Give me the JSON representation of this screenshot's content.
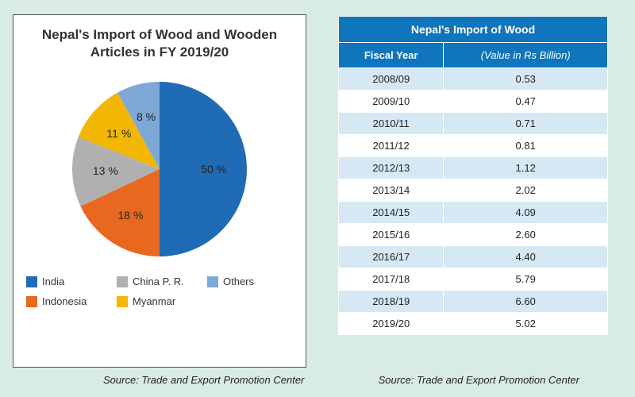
{
  "chart": {
    "type": "pie",
    "title": "Nepal's Import of Wood and Wooden Articles in FY 2019/20",
    "title_fontsize": 17,
    "background_color": "#ffffff",
    "border_color": "#555555",
    "radius": 110,
    "label_fontsize": 14,
    "slices": [
      {
        "label": "India",
        "value": 50,
        "color": "#1f6bb6"
      },
      {
        "label": "Indonesia",
        "value": 18,
        "color": "#e8681f"
      },
      {
        "label": "China P. R.",
        "value": 13,
        "color": "#b0b0b0"
      },
      {
        "label": "Myanmar",
        "value": 11,
        "color": "#f2b705"
      },
      {
        "label": "Others",
        "value": 8,
        "color": "#7ea8d6"
      }
    ],
    "legend_order": [
      "India",
      "China P. R.",
      "Others",
      "Indonesia",
      "Myanmar"
    ],
    "source": "Source: Trade and Export Promotion Center"
  },
  "table": {
    "title": "Nepal's Import of Wood",
    "header_bg": "#0f75bc",
    "header_fg": "#ffffff",
    "row_alt_bg": "#d6e8f4",
    "row_bg": "#ffffff",
    "columns": [
      {
        "label": "Fiscal Year",
        "italic": false
      },
      {
        "label": "(Value in Rs Billion)",
        "italic": true
      }
    ],
    "rows": [
      [
        "2008/09",
        "0.53"
      ],
      [
        "2009/10",
        "0.47"
      ],
      [
        "2010/11",
        "0.71"
      ],
      [
        "2011/12",
        "0.81"
      ],
      [
        "2012/13",
        "1.12"
      ],
      [
        "2013/14",
        "2.02"
      ],
      [
        "2014/15",
        "4.09"
      ],
      [
        "2015/16",
        "2.60"
      ],
      [
        "2016/17",
        "4.40"
      ],
      [
        "2017/18",
        "5.79"
      ],
      [
        "2018/19",
        "6.60"
      ],
      [
        "2019/20",
        "5.02"
      ]
    ],
    "source": "Source: Trade and Export Promotion Center"
  },
  "page_bg": "#d9ebe5"
}
